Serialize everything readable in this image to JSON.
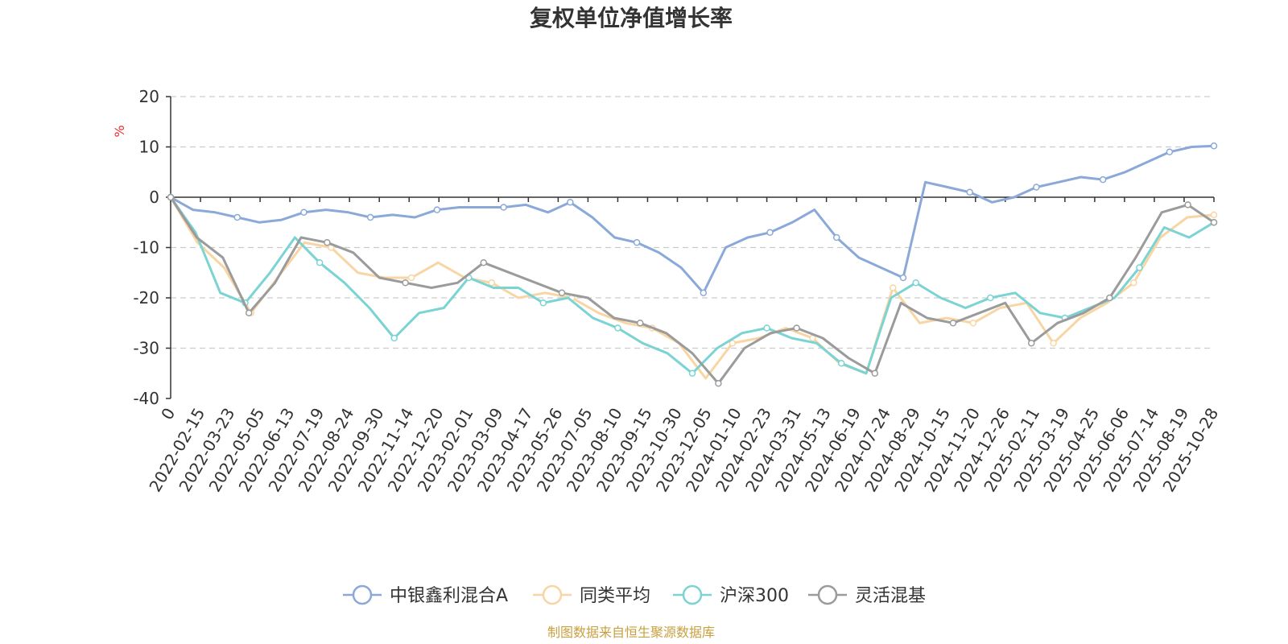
{
  "chart_data": {
    "type": "line",
    "title": "复权单位净值增长率",
    "ylabel": "%",
    "ylim": [
      -40,
      20
    ],
    "yticks": [
      20,
      10,
      0,
      -10,
      -20,
      -30,
      -40
    ],
    "grid": true,
    "legend_position": "bottom-center",
    "x_ticks": [
      "0",
      "2022-02-15",
      "2022-03-23",
      "2022-05-05",
      "2022-06-13",
      "2022-07-19",
      "2022-08-24",
      "2022-09-30",
      "2022-11-14",
      "2022-12-20",
      "2023-02-01",
      "2023-03-09",
      "2023-04-17",
      "2023-05-26",
      "2023-07-05",
      "2023-08-10",
      "2023-09-15",
      "2023-10-30",
      "2023-12-05",
      "2024-01-10",
      "2024-02-23",
      "2024-03-31",
      "2024-05-13",
      "2024-06-19",
      "2024-07-24",
      "2024-08-29",
      "2024-10-15",
      "2024-11-20",
      "2024-12-26",
      "2025-02-11",
      "2025-03-19",
      "2025-04-25",
      "2025-06-06",
      "2025-07-14",
      "2025-08-19",
      "2025-10-28"
    ],
    "series": [
      {
        "name": "中银鑫利混合A",
        "color": "#8ba9d8",
        "values": [
          0,
          -2.5,
          -3,
          -4,
          -5,
          -4.5,
          -3,
          -2.5,
          -3,
          -4,
          -3.5,
          -4,
          -2.5,
          -2,
          -2,
          -2,
          -1.5,
          -3,
          -1,
          -4,
          -8,
          -9,
          -11,
          -14,
          -19,
          -10,
          -8,
          -7,
          -5,
          -2.5,
          -8,
          -12,
          -14,
          -16,
          3,
          2,
          1,
          -1,
          0,
          2,
          3,
          4,
          3.5,
          5,
          7,
          9,
          10,
          10.2
        ]
      },
      {
        "name": "同类平均",
        "color": "#f8d5a3",
        "values": [
          0,
          -9,
          -14,
          -23,
          -16,
          -9,
          -10,
          -15,
          -16,
          -16,
          -13,
          -16,
          -17,
          -20,
          -19,
          -20,
          -23,
          -25,
          -26,
          -29,
          -36,
          -29,
          -28,
          -26,
          -28,
          -33,
          -35,
          -18,
          -25,
          -24,
          -25,
          -22,
          -21,
          -29,
          -24,
          -21,
          -17,
          -8,
          -4,
          -3.5
        ]
      },
      {
        "name": "沪深300",
        "color": "#7bd3d3",
        "values": [
          0,
          -7,
          -19,
          -21,
          -15,
          -8,
          -13,
          -17,
          -22,
          -28,
          -23,
          -22,
          -16,
          -18,
          -18,
          -21,
          -20,
          -24,
          -26,
          -29,
          -31,
          -35,
          -30,
          -27,
          -26,
          -28,
          -29,
          -33,
          -35,
          -20,
          -17,
          -20,
          -22,
          -20,
          -19,
          -23,
          -24,
          -22,
          -20,
          -14,
          -6,
          -8,
          -5
        ]
      },
      {
        "name": "灵活混基",
        "color": "#9b9b9b",
        "values": [
          0,
          -8,
          -12,
          -23,
          -17,
          -8,
          -9,
          -11,
          -16,
          -17,
          -18,
          -17,
          -13,
          -15,
          -17,
          -19,
          -20,
          -24,
          -25,
          -27,
          -31,
          -37,
          -30,
          -27,
          -26,
          -28,
          -32,
          -35,
          -21,
          -24,
          -25,
          -23,
          -21,
          -29,
          -25,
          -23,
          -20,
          -12,
          -3,
          -1.5,
          -5
        ]
      }
    ],
    "source": "制图数据来自恒生聚源数据库"
  },
  "colors": {
    "title": "#333333",
    "axis": "#333333",
    "grid": "#cccccc",
    "unit": "#e03030",
    "source": "#c8a040"
  }
}
